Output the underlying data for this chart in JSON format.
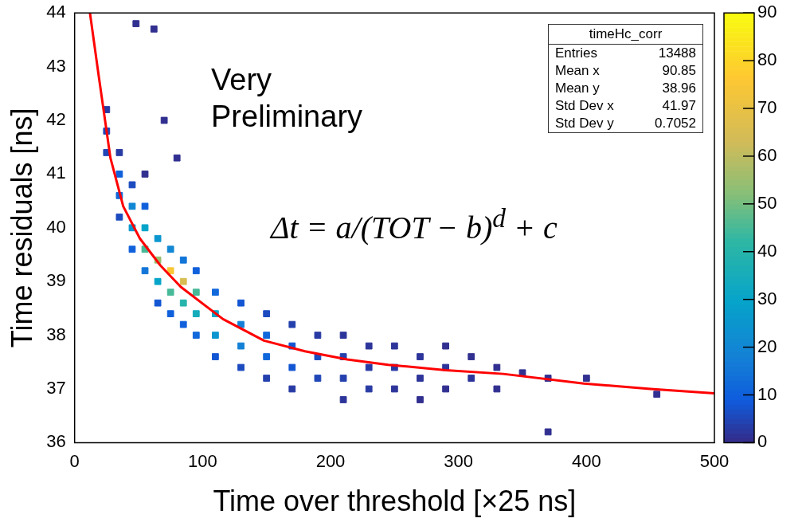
{
  "chart_data": {
    "type": "scatter",
    "xlabel": "Time over threshold [×25 ns]",
    "ylabel": "Time residuals [ns]",
    "xlim": [
      0,
      500
    ],
    "xticks": [
      0,
      100,
      200,
      300,
      400,
      500
    ],
    "ylim": [
      36,
      44
    ],
    "yticks": [
      36,
      37,
      38,
      39,
      40,
      41,
      42,
      43,
      44
    ],
    "clim": [
      0,
      90
    ],
    "cticks": [
      0,
      10,
      20,
      30,
      40,
      50,
      60,
      70,
      80,
      90
    ],
    "marker": "square",
    "legend": false,
    "grid": false,
    "annotations": [
      "Very Preliminary",
      "Δt = a/(TOT − b)$^{d}$ + c",
      "timeHc_corr",
      "Entries 13488",
      "Mean x 90.85",
      "Mean y 38.96",
      "Std Dev x 41.97",
      "Std Dev y 0.7052"
    ],
    "series": [
      {
        "x": [
          25,
          25,
          25,
          35,
          35,
          35,
          35,
          45,
          45,
          45,
          45,
          55,
          55,
          55,
          55,
          65,
          65,
          65,
          65,
          75,
          75,
          75,
          75,
          85,
          85,
          85,
          85,
          95,
          95,
          95,
          95,
          110,
          110,
          110,
          110,
          130,
          130,
          130,
          130,
          150,
          150,
          150,
          150,
          170,
          170,
          170,
          170,
          190,
          190,
          190,
          210,
          210,
          210,
          210,
          230,
          230,
          230,
          250,
          250,
          250,
          270,
          270,
          270,
          290,
          290,
          290,
          310,
          310,
          330,
          330,
          350,
          370,
          370,
          400,
          455,
          48,
          62,
          55,
          80,
          70
        ],
        "values": [
          41.8,
          42.2,
          41.4,
          41.0,
          40.6,
          40.2,
          41.4,
          40.4,
          40.0,
          39.6,
          40.8,
          40.0,
          39.6,
          39.2,
          40.4,
          39.8,
          39.4,
          39.0,
          38.6,
          39.6,
          39.2,
          38.8,
          38.4,
          39.4,
          39.0,
          38.6,
          38.2,
          39.2,
          38.8,
          38.4,
          38.0,
          38.8,
          38.4,
          38.0,
          37.6,
          38.6,
          38.2,
          37.8,
          37.4,
          38.4,
          38.0,
          37.6,
          37.2,
          38.2,
          37.8,
          37.4,
          37.0,
          38.0,
          37.6,
          37.2,
          38.0,
          37.6,
          37.2,
          36.8,
          37.8,
          37.4,
          37.0,
          37.8,
          37.4,
          37.0,
          37.6,
          37.2,
          36.8,
          37.8,
          37.4,
          37.0,
          37.6,
          37.2,
          37.4,
          37.0,
          37.3,
          36.2,
          37.2,
          37.2,
          36.9,
          43.8,
          43.7,
          41.0,
          41.3,
          42.0
        ],
        "cvalues": [
          5,
          3,
          5,
          10,
          12,
          6,
          3,
          20,
          25,
          10,
          6,
          30,
          45,
          15,
          10,
          25,
          55,
          30,
          8,
          20,
          75,
          45,
          10,
          15,
          65,
          40,
          10,
          10,
          45,
          35,
          12,
          12,
          30,
          25,
          8,
          8,
          18,
          18,
          6,
          6,
          12,
          12,
          4,
          4,
          8,
          8,
          3,
          3,
          6,
          5,
          2,
          4,
          4,
          2,
          2,
          3,
          3,
          2,
          3,
          2,
          2,
          2,
          1,
          1,
          2,
          1,
          1,
          2,
          1,
          1,
          1,
          1,
          1,
          1,
          1,
          1,
          1,
          1,
          1,
          1
        ],
        "colors": [
          "#2046b7",
          "#293aa4",
          "#2046b7",
          "#1060dc",
          "#1168db",
          "#1b4bc0",
          "#293aa4",
          "#1287d4",
          "#0c96cf",
          "#1060dc",
          "#1b4bc0",
          "#06a4ca",
          "#46b998",
          "#1275d8",
          "#1060dc",
          "#0c96cf",
          "#9abe6f",
          "#06a4ca",
          "#1356d3",
          "#1287d4",
          "#f9c736",
          "#46b998",
          "#1060dc",
          "#1275d8",
          "#d8bd53",
          "#26b3ac",
          "#1060dc",
          "#1060dc",
          "#46b998",
          "#16acbb",
          "#1168db",
          "#1168db",
          "#06a4ca",
          "#0c96cf",
          "#1356d3",
          "#1356d3",
          "#1481d6",
          "#1481d6",
          "#1b4bc0",
          "#1b4bc0",
          "#1168db",
          "#1168db",
          "#2440ad",
          "#2440ad",
          "#1356d3",
          "#1356d3",
          "#293aa4",
          "#293aa4",
          "#1b4bc0",
          "#2046b7",
          "#2d359a",
          "#2440ad",
          "#2440ad",
          "#2d359a",
          "#2d359a",
          "#293aa4",
          "#293aa4",
          "#2d359a",
          "#293aa4",
          "#2d359a",
          "#2d359a",
          "#2d359a",
          "#313090",
          "#313090",
          "#2d359a",
          "#313090",
          "#313090",
          "#2d359a",
          "#313090",
          "#313090",
          "#313090",
          "#313090",
          "#313090",
          "#313090",
          "#313090",
          "#313090",
          "#313090",
          "#313090",
          "#313090",
          "#313090"
        ]
      },
      {
        "type": "line",
        "color": "#ff0000",
        "marker": "none",
        "x": [
          12,
          19,
          28,
          38,
          51,
          67,
          83,
          116,
          148,
          180,
          213,
          245,
          290,
          335,
          398,
          450,
          500
        ],
        "values": [
          44.0,
          42.8,
          41.3,
          40.4,
          39.8,
          39.3,
          38.9,
          38.3,
          37.9,
          37.7,
          37.55,
          37.45,
          37.35,
          37.28,
          37.1,
          37.0,
          36.92
        ]
      }
    ]
  }
}
